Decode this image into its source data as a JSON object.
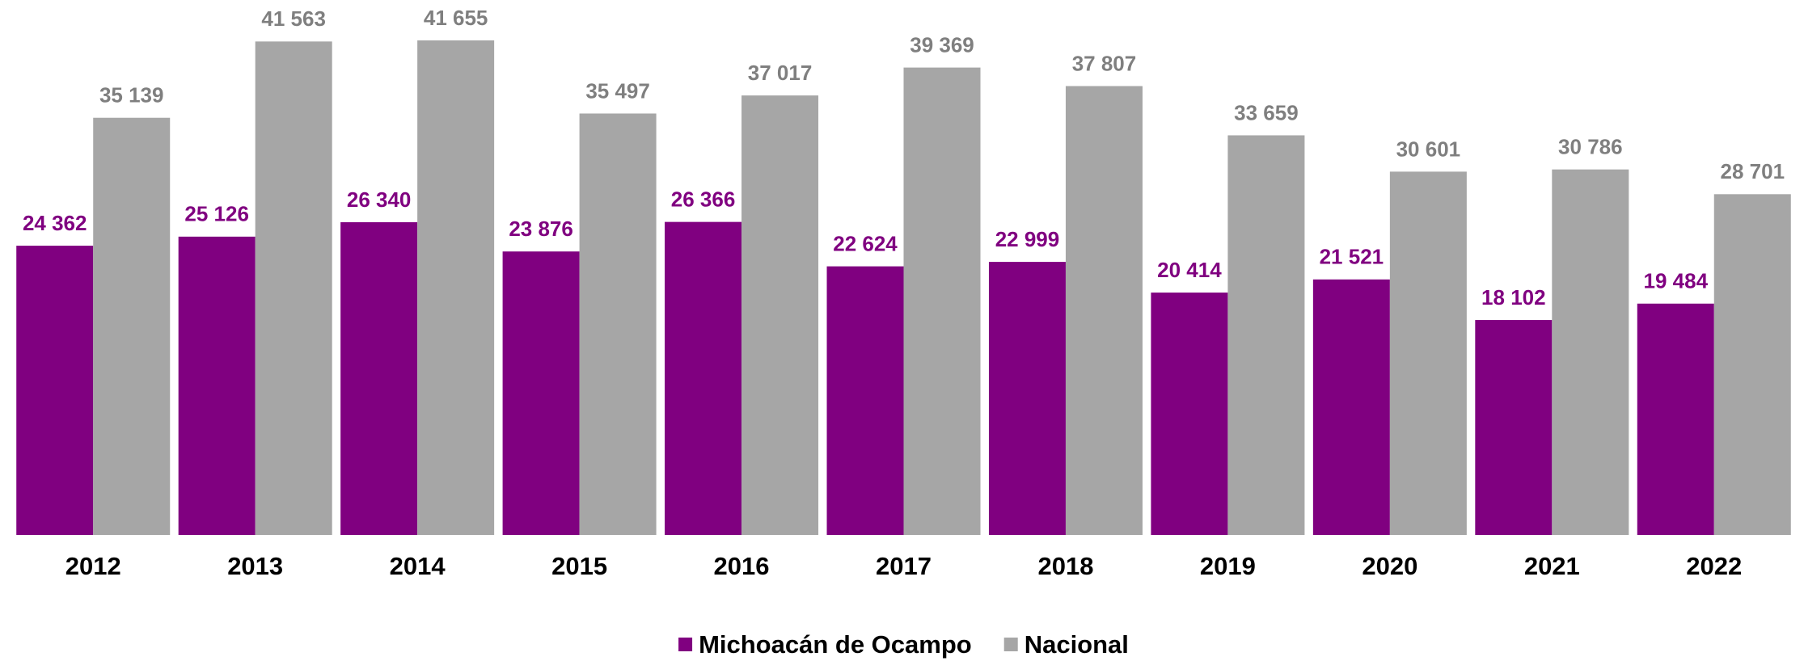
{
  "chart_data": {
    "type": "bar",
    "categories": [
      "2012",
      "2013",
      "2014",
      "2015",
      "2016",
      "2017",
      "2018",
      "2019",
      "2020",
      "2021",
      "2022"
    ],
    "series": [
      {
        "name": "Michoacán de Ocampo",
        "color": "#800080",
        "values": [
          24362,
          25126,
          26340,
          23876,
          26366,
          22624,
          22999,
          20414,
          21521,
          18102,
          19484
        ],
        "value_labels": [
          "24 362",
          "25 126",
          "26 340",
          "23 876",
          "26 366",
          "22 624",
          "22 999",
          "20 414",
          "21 521",
          "18 102",
          "19 484"
        ],
        "label_color": "#800080"
      },
      {
        "name": "Nacional",
        "color": "#a6a6a6",
        "values": [
          35139,
          41563,
          41655,
          35497,
          37017,
          39369,
          37807,
          33659,
          30601,
          30786,
          28701
        ],
        "value_labels": [
          "35 139",
          "41 563",
          "41 655",
          "35 497",
          "37 017",
          "39 369",
          "37 807",
          "33 659",
          "30 601",
          "30 786",
          "28 701"
        ],
        "label_color": "#7f7f7f"
      }
    ],
    "legend": "bottom"
  }
}
